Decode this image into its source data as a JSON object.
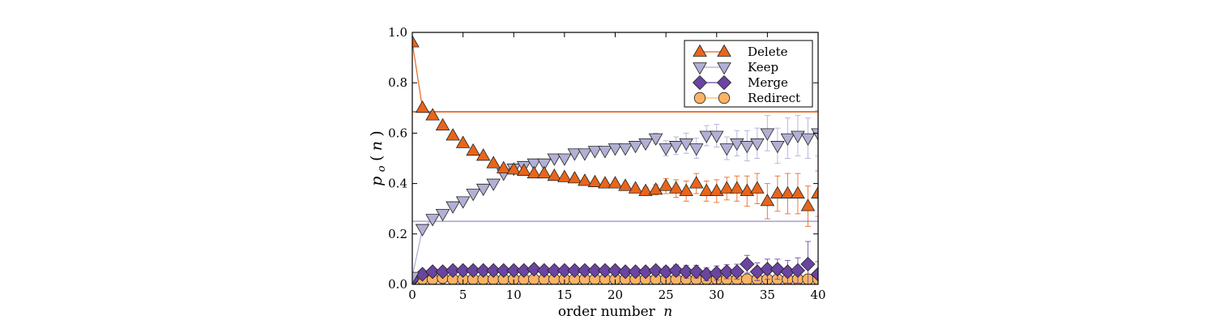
{
  "chart_data": {
    "type": "scatter",
    "title": "",
    "xlabel": "order number n",
    "ylabel": "p_o(n)",
    "xlabel_text": "order number",
    "xlabel_var": "n",
    "ylabel_parts": {
      "p": "p",
      "sub": "o",
      "open": "(",
      "var": "n",
      "close": ")"
    },
    "xlim": [
      0,
      40
    ],
    "ylim": [
      0.0,
      1.0
    ],
    "xticks": [
      0,
      5,
      10,
      15,
      20,
      25,
      30,
      35,
      40
    ],
    "xtick_labels": [
      "0",
      "5",
      "10",
      "15",
      "20",
      "25",
      "30",
      "35",
      "40"
    ],
    "yticks": [
      0.0,
      0.2,
      0.4,
      0.6,
      0.8,
      1.0
    ],
    "ytick_labels": [
      "0.0",
      "0.2",
      "0.4",
      "0.6",
      "0.8",
      "1.0"
    ],
    "grid": false,
    "legend_position": "top-right",
    "x": [
      0,
      1,
      2,
      3,
      4,
      5,
      6,
      7,
      8,
      9,
      10,
      11,
      12,
      13,
      14,
      15,
      16,
      17,
      18,
      19,
      20,
      21,
      22,
      23,
      24,
      25,
      26,
      27,
      28,
      29,
      30,
      31,
      32,
      33,
      34,
      35,
      36,
      37,
      38,
      39,
      40
    ],
    "series": [
      {
        "name": "Delete",
        "marker": "triangle-up",
        "color": "#e8651b",
        "line_color": "#e8651b",
        "reference_line": 0.685,
        "line_points": 3,
        "values": [
          0.96,
          0.7,
          0.67,
          0.63,
          0.59,
          0.56,
          0.53,
          0.51,
          0.48,
          0.46,
          0.455,
          0.45,
          0.44,
          0.44,
          0.43,
          0.425,
          0.42,
          0.41,
          0.405,
          0.4,
          0.4,
          0.39,
          0.38,
          0.37,
          0.375,
          0.39,
          0.38,
          0.37,
          0.4,
          0.37,
          0.37,
          0.38,
          0.38,
          0.37,
          0.38,
          0.33,
          0.36,
          0.36,
          0.36,
          0.31,
          0.36
        ],
        "errors": [
          0,
          0,
          0,
          0,
          0,
          0,
          0,
          0,
          0,
          0,
          0.005,
          0.005,
          0.005,
          0.005,
          0.006,
          0.006,
          0.007,
          0.007,
          0.008,
          0.008,
          0.01,
          0.01,
          0.012,
          0.015,
          0.02,
          0.03,
          0.035,
          0.04,
          0.04,
          0.04,
          0.045,
          0.045,
          0.05,
          0.06,
          0.06,
          0.07,
          0.07,
          0.08,
          0.08,
          0.08,
          0.09
        ]
      },
      {
        "name": "Keep",
        "marker": "triangle-down",
        "color": "#b2b0d4",
        "line_color": "#aeaad6",
        "reference_line": 0.25,
        "line_points": 3,
        "values": [
          0.03,
          0.22,
          0.26,
          0.28,
          0.31,
          0.33,
          0.36,
          0.38,
          0.4,
          0.44,
          0.46,
          0.47,
          0.48,
          0.48,
          0.5,
          0.5,
          0.52,
          0.52,
          0.53,
          0.53,
          0.54,
          0.54,
          0.55,
          0.56,
          0.58,
          0.54,
          0.55,
          0.56,
          0.54,
          0.59,
          0.59,
          0.54,
          0.56,
          0.55,
          0.56,
          0.6,
          0.55,
          0.58,
          0.59,
          0.58,
          0.6
        ],
        "errors": [
          0,
          0,
          0,
          0,
          0,
          0,
          0,
          0,
          0,
          0,
          0.005,
          0.005,
          0.005,
          0.005,
          0.006,
          0.006,
          0.007,
          0.007,
          0.008,
          0.008,
          0.01,
          0.01,
          0.012,
          0.015,
          0.02,
          0.03,
          0.035,
          0.04,
          0.04,
          0.04,
          0.045,
          0.045,
          0.05,
          0.06,
          0.06,
          0.07,
          0.07,
          0.08,
          0.08,
          0.08,
          0.09
        ]
      },
      {
        "name": "Merge",
        "marker": "diamond",
        "color": "#6a44a1",
        "line_color": "#6a44a1",
        "reference_line": null,
        "line_points": 2,
        "values": [
          0.02,
          0.04,
          0.05,
          0.05,
          0.055,
          0.055,
          0.055,
          0.055,
          0.055,
          0.055,
          0.055,
          0.055,
          0.06,
          0.055,
          0.055,
          0.055,
          0.055,
          0.055,
          0.055,
          0.055,
          0.055,
          0.05,
          0.05,
          0.05,
          0.055,
          0.05,
          0.055,
          0.05,
          0.05,
          0.04,
          0.045,
          0.05,
          0.05,
          0.08,
          0.05,
          0.06,
          0.06,
          0.05,
          0.055,
          0.08,
          0.04
        ],
        "errors": [
          0,
          0,
          0,
          0,
          0,
          0,
          0,
          0,
          0,
          0,
          0.004,
          0.004,
          0.004,
          0.004,
          0.004,
          0.005,
          0.005,
          0.005,
          0.005,
          0.005,
          0.006,
          0.006,
          0.008,
          0.01,
          0.012,
          0.02,
          0.022,
          0.025,
          0.025,
          0.025,
          0.028,
          0.028,
          0.03,
          0.035,
          0.035,
          0.04,
          0.04,
          0.045,
          0.05,
          0.09,
          0.05
        ]
      },
      {
        "name": "Redirect",
        "marker": "circle",
        "color": "#fcb365",
        "line_color": "#fcb365",
        "reference_line": null,
        "line_points": 2,
        "values": [
          0.02,
          0.02,
          0.02,
          0.025,
          0.02,
          0.02,
          0.02,
          0.02,
          0.02,
          0.02,
          0.02,
          0.02,
          0.02,
          0.02,
          0.02,
          0.02,
          0.02,
          0.02,
          0.02,
          0.02,
          0.02,
          0.02,
          0.02,
          0.02,
          0.02,
          0.02,
          0.02,
          0.02,
          0.02,
          0.02,
          0.02,
          0.02,
          0.02,
          0.02,
          0.02,
          0.02,
          0.02,
          0.02,
          0.02,
          0.02,
          0.02
        ],
        "errors": [
          0,
          0,
          0,
          0,
          0,
          0,
          0,
          0,
          0,
          0,
          0.002,
          0.002,
          0.002,
          0.002,
          0.002,
          0.002,
          0.002,
          0.002,
          0.002,
          0.002,
          0.003,
          0.003,
          0.003,
          0.004,
          0.004,
          0.005,
          0.005,
          0.006,
          0.006,
          0.006,
          0.007,
          0.007,
          0.008,
          0.008,
          0.008,
          0.009,
          0.009,
          0.01,
          0.01,
          0.012,
          0.012
        ]
      }
    ]
  }
}
